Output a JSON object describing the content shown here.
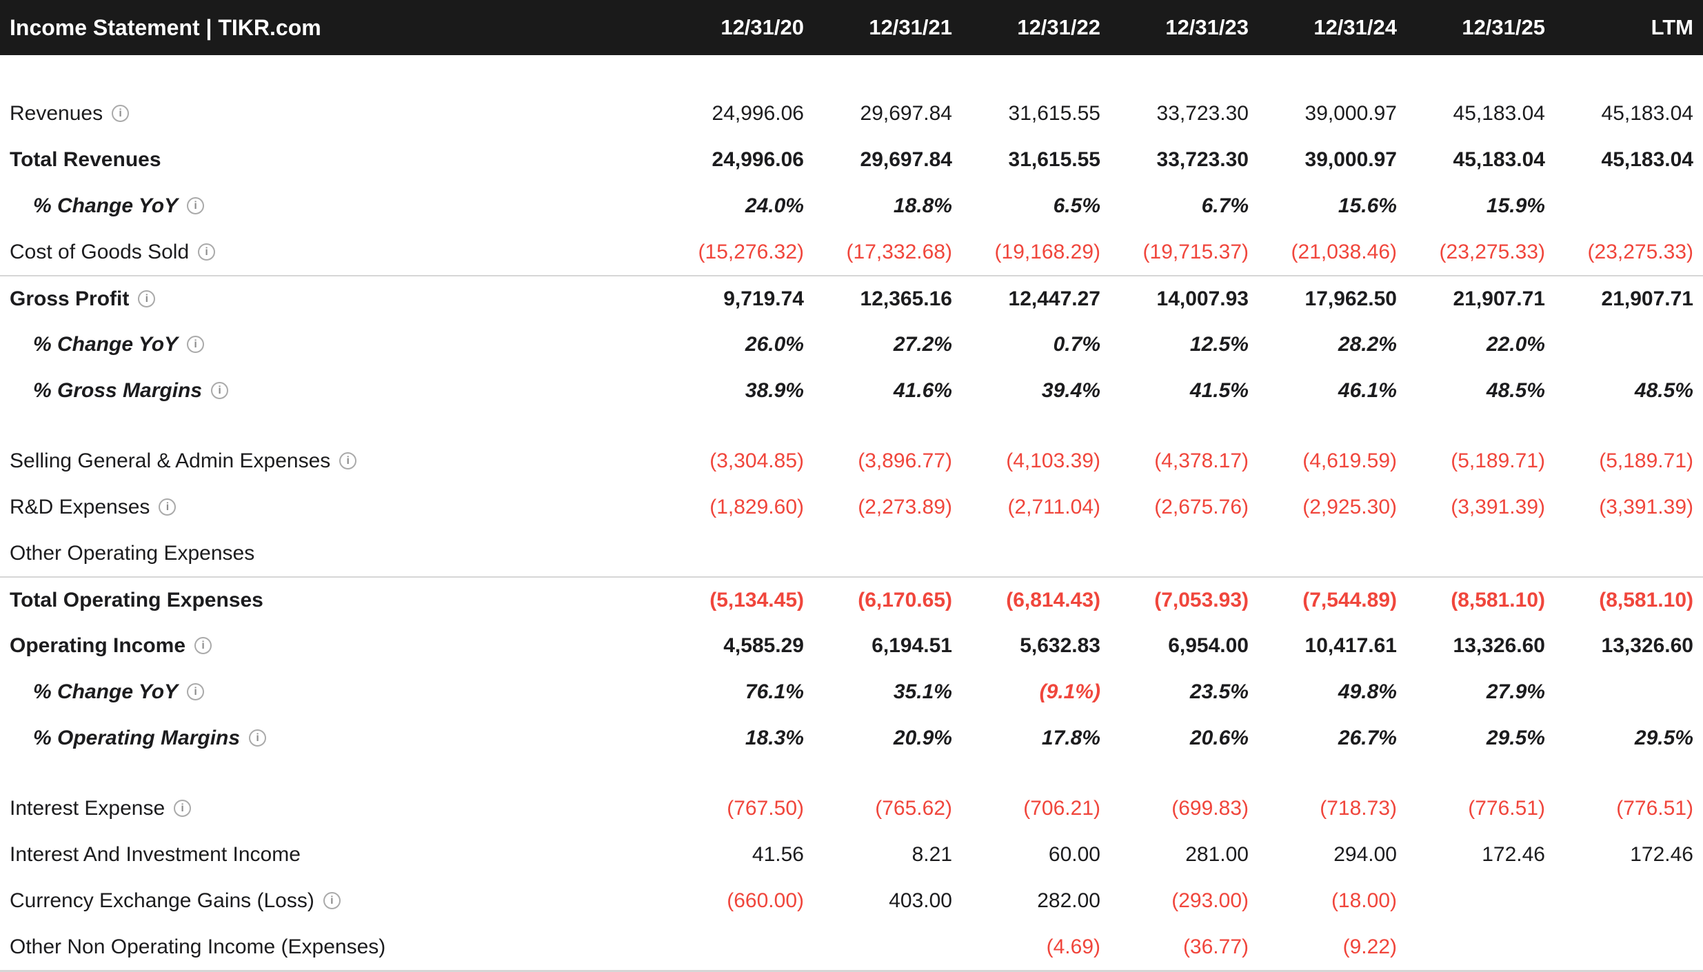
{
  "app": {
    "title": "Income Statement | TIKR.com"
  },
  "columns": [
    "12/31/20",
    "12/31/21",
    "12/31/22",
    "12/31/23",
    "12/31/24",
    "12/31/25",
    "LTM"
  ],
  "colors": {
    "header_bg": "#1a1a1a",
    "text": "#1c1c1e",
    "negative": "#f0463c",
    "divider": "#d6d6d6",
    "icon": "#8e8e8e"
  },
  "rows": [
    {
      "type": "data",
      "label": "Revenues",
      "info": true,
      "values": [
        "24,996.06",
        "29,697.84",
        "31,615.55",
        "33,723.30",
        "39,000.97",
        "45,183.04",
        "45,183.04"
      ]
    },
    {
      "type": "data",
      "label": "Total Revenues",
      "bold": true,
      "values": [
        "24,996.06",
        "29,697.84",
        "31,615.55",
        "33,723.30",
        "39,000.97",
        "45,183.04",
        "45,183.04"
      ]
    },
    {
      "type": "data",
      "label": "% Change YoY",
      "pct": true,
      "info": true,
      "values": [
        "24.0%",
        "18.8%",
        "6.5%",
        "6.7%",
        "15.6%",
        "15.9%",
        ""
      ]
    },
    {
      "type": "data",
      "label": "Cost of Goods Sold",
      "info": true,
      "values": [
        "(15,276.32)",
        "(17,332.68)",
        "(19,168.29)",
        "(19,715.37)",
        "(21,038.46)",
        "(23,275.33)",
        "(23,275.33)"
      ]
    },
    {
      "type": "data",
      "label": "Gross Profit",
      "bold": true,
      "info": true,
      "topline": true,
      "values": [
        "9,719.74",
        "12,365.16",
        "12,447.27",
        "14,007.93",
        "17,962.50",
        "21,907.71",
        "21,907.71"
      ]
    },
    {
      "type": "data",
      "label": "% Change YoY",
      "pct": true,
      "info": true,
      "values": [
        "26.0%",
        "27.2%",
        "0.7%",
        "12.5%",
        "28.2%",
        "22.0%",
        ""
      ]
    },
    {
      "type": "data",
      "label": "% Gross Margins",
      "pct": true,
      "info": true,
      "values": [
        "38.9%",
        "41.6%",
        "39.4%",
        "41.5%",
        "46.1%",
        "48.5%",
        "48.5%"
      ]
    },
    {
      "type": "spacer"
    },
    {
      "type": "data",
      "label": "Selling General & Admin Expenses",
      "info": true,
      "values": [
        "(3,304.85)",
        "(3,896.77)",
        "(4,103.39)",
        "(4,378.17)",
        "(4,619.59)",
        "(5,189.71)",
        "(5,189.71)"
      ]
    },
    {
      "type": "data",
      "label": "R&D Expenses",
      "info": true,
      "values": [
        "(1,829.60)",
        "(2,273.89)",
        "(2,711.04)",
        "(2,675.76)",
        "(2,925.30)",
        "(3,391.39)",
        "(3,391.39)"
      ]
    },
    {
      "type": "data",
      "label": "Other Operating Expenses",
      "values": [
        "",
        "",
        "",
        "",
        "",
        "",
        ""
      ]
    },
    {
      "type": "data",
      "label": "Total Operating Expenses",
      "bold": true,
      "topline": true,
      "values": [
        "(5,134.45)",
        "(6,170.65)",
        "(6,814.43)",
        "(7,053.93)",
        "(7,544.89)",
        "(8,581.10)",
        "(8,581.10)"
      ]
    },
    {
      "type": "data",
      "label": "Operating Income",
      "bold": true,
      "info": true,
      "values": [
        "4,585.29",
        "6,194.51",
        "5,632.83",
        "6,954.00",
        "10,417.61",
        "13,326.60",
        "13,326.60"
      ]
    },
    {
      "type": "data",
      "label": "% Change YoY",
      "pct": true,
      "info": true,
      "values": [
        "76.1%",
        "35.1%",
        "(9.1%)",
        "23.5%",
        "49.8%",
        "27.9%",
        ""
      ]
    },
    {
      "type": "data",
      "label": "% Operating Margins",
      "pct": true,
      "info": true,
      "values": [
        "18.3%",
        "20.9%",
        "17.8%",
        "20.6%",
        "26.7%",
        "29.5%",
        "29.5%"
      ]
    },
    {
      "type": "spacer"
    },
    {
      "type": "data",
      "label": "Interest Expense",
      "info": true,
      "values": [
        "(767.50)",
        "(765.62)",
        "(706.21)",
        "(699.83)",
        "(718.73)",
        "(776.51)",
        "(776.51)"
      ]
    },
    {
      "type": "data",
      "label": "Interest And Investment Income",
      "values": [
        "41.56",
        "8.21",
        "60.00",
        "281.00",
        "294.00",
        "172.46",
        "172.46"
      ]
    },
    {
      "type": "data",
      "label": "Currency Exchange Gains (Loss)",
      "info": true,
      "values": [
        "(660.00)",
        "403.00",
        "282.00",
        "(293.00)",
        "(18.00)",
        "",
        ""
      ]
    },
    {
      "type": "data",
      "label": "Other Non Operating Income (Expenses)",
      "values": [
        "",
        "",
        "(4.69)",
        "(36.77)",
        "(9.22)",
        "",
        ""
      ]
    }
  ]
}
